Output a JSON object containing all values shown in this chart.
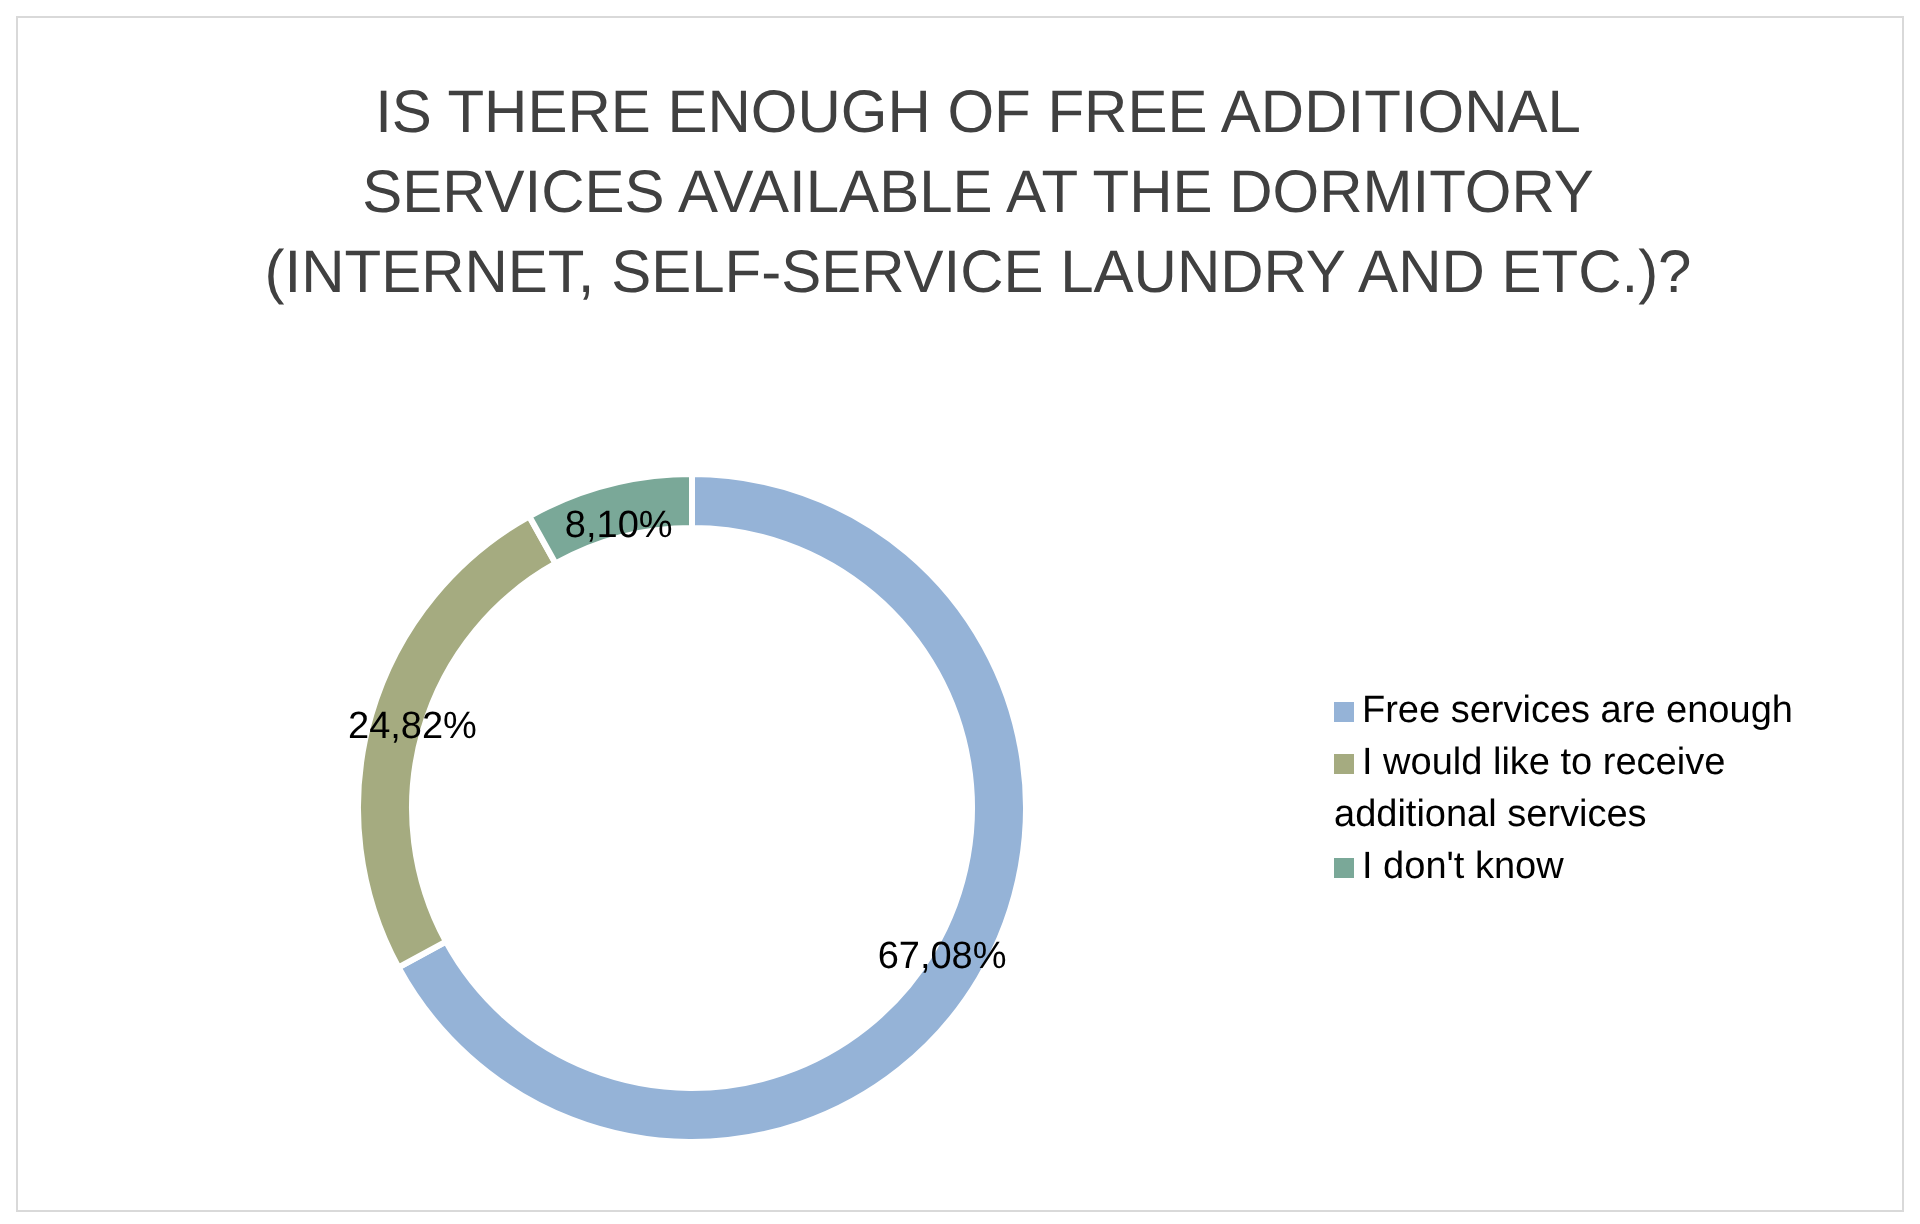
{
  "chart_data": {
    "type": "donut",
    "title": "IS THERE ENOUGH OF FREE ADDITIONAL SERVICES AVAILABLE AT THE DORMITORY (INTERNET, SELF-SERVICE LAUNDRY AND ETC.)?",
    "categories": [
      "Free services are enough",
      "I would like to receive additional services",
      "I don't know"
    ],
    "values": [
      67.08,
      24.82,
      8.1
    ],
    "value_labels": [
      "67,08%",
      "24,82%",
      "8,10%"
    ],
    "colors": [
      "#95b3d7",
      "#a5ab80",
      "#7aa898"
    ],
    "legend": "right"
  }
}
